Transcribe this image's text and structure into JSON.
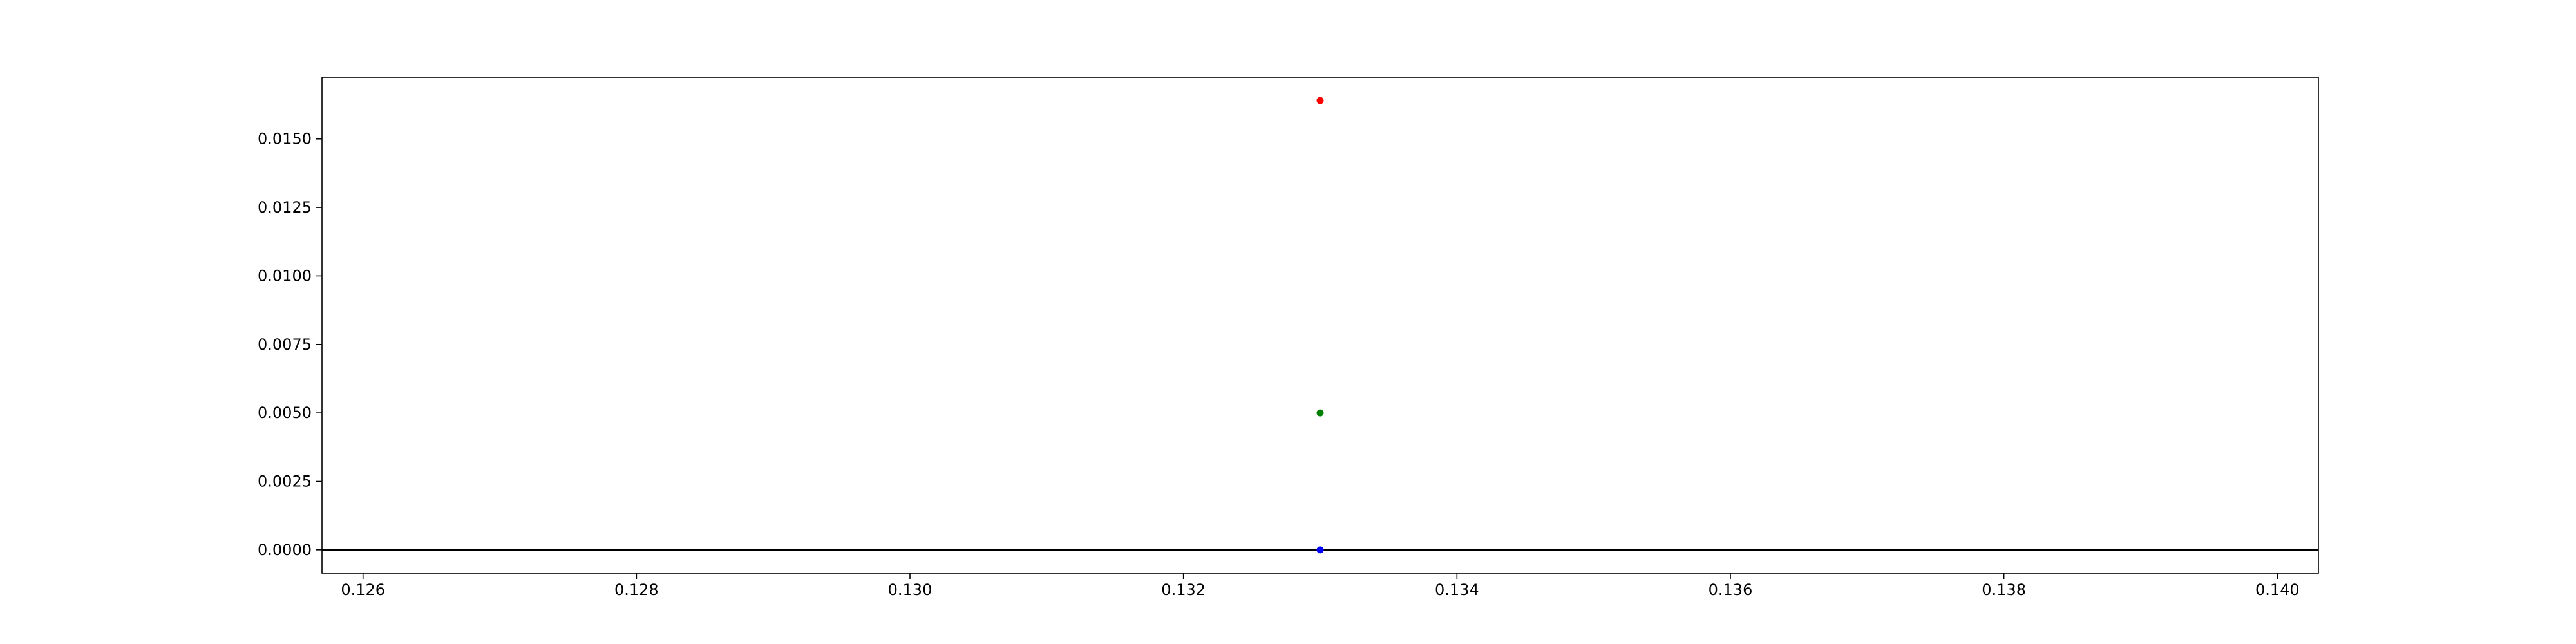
{
  "chart_data": {
    "type": "scatter",
    "title": "",
    "xlabel": "",
    "ylabel": "",
    "xlim": [
      0.1257,
      0.1403
    ],
    "ylim": [
      -0.00085,
      0.01725
    ],
    "xticks": [
      0.126,
      0.128,
      0.13,
      0.132,
      0.134,
      0.136,
      0.138,
      0.14
    ],
    "xtick_labels": [
      "0.126",
      "0.128",
      "0.130",
      "0.132",
      "0.134",
      "0.136",
      "0.138",
      "0.140"
    ],
    "yticks": [
      0.0,
      0.0025,
      0.005,
      0.0075,
      0.01,
      0.0125,
      0.015
    ],
    "ytick_labels": [
      "0.0000",
      "0.0025",
      "0.0050",
      "0.0075",
      "0.0100",
      "0.0125",
      "0.0150"
    ],
    "grid": false,
    "hline": 0,
    "points": [
      {
        "x": 0.133,
        "y": 0.0164,
        "color": "#ff0000"
      },
      {
        "x": 0.133,
        "y": 0.005,
        "color": "#008000"
      },
      {
        "x": 0.133,
        "y": 0.0,
        "color": "#0000ff"
      }
    ]
  }
}
